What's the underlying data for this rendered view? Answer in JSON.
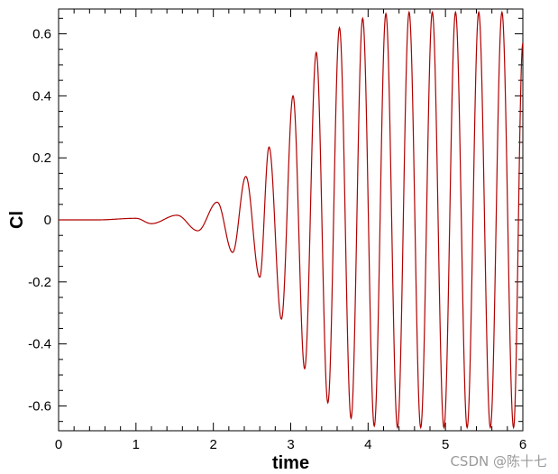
{
  "chart_data": {
    "type": "line",
    "title": "",
    "xlabel": "time",
    "ylabel": "Cl",
    "xlim": [
      0,
      6
    ],
    "ylim": [
      -0.68,
      0.68
    ],
    "xticks": [
      0,
      1,
      2,
      3,
      4,
      5,
      6
    ],
    "xtick_labels": [
      "0",
      "1",
      "2",
      "3",
      "4",
      "5",
      "6"
    ],
    "yticks": [
      -0.6,
      -0.4,
      -0.2,
      0,
      0.2,
      0.4,
      0.6
    ],
    "ytick_labels": [
      "-0.6",
      "-0.4",
      "-0.2",
      "0",
      "0.2",
      "0.4",
      "0.6"
    ],
    "grid": false,
    "legend": "none",
    "series": [
      {
        "color": "#b00000",
        "x": [
          0.0,
          0.5,
          1.0,
          1.2,
          1.53,
          1.8,
          2.05,
          2.25,
          2.42,
          2.6,
          2.72,
          2.88,
          3.03,
          3.18,
          3.33,
          3.48,
          3.63,
          3.78,
          3.93,
          4.08,
          4.23,
          4.38,
          4.53,
          4.68,
          4.83,
          4.98,
          5.13,
          5.28,
          5.43,
          5.58,
          5.73,
          5.88,
          6.0
        ],
        "y": [
          0.0,
          0.0,
          0.005,
          -0.012,
          0.015,
          -0.035,
          0.057,
          -0.105,
          0.14,
          -0.185,
          0.235,
          -0.32,
          0.4,
          -0.48,
          0.54,
          -0.59,
          0.62,
          -0.64,
          0.65,
          -0.665,
          0.665,
          -0.67,
          0.67,
          -0.67,
          0.67,
          -0.67,
          0.67,
          -0.67,
          0.67,
          -0.67,
          0.67,
          -0.67,
          0.57
        ]
      }
    ]
  },
  "watermark": "CSDN @陈十七"
}
